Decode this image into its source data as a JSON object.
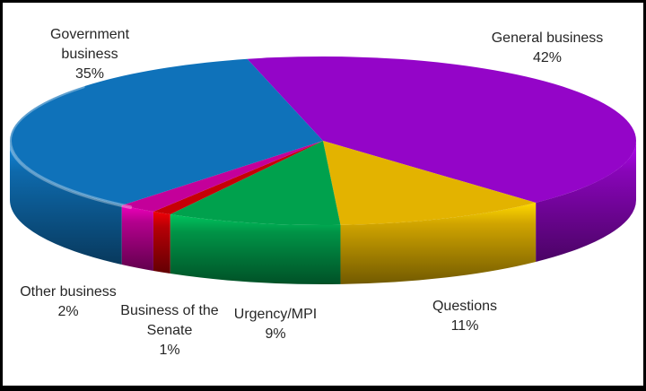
{
  "chart_data": {
    "type": "pie",
    "style": "3d",
    "title": "",
    "legend": "none",
    "labels_position": "outside",
    "label_text_color": "#262626",
    "slices": [
      {
        "id": "general-business",
        "label": "General business",
        "value": 42,
        "pct_text": "42%",
        "color": "#9405C8"
      },
      {
        "id": "questions",
        "label": "Questions",
        "value": 11,
        "pct_text": "11%",
        "color": "#E3B300"
      },
      {
        "id": "urgency-mpi",
        "label": "Urgency/MPI",
        "value": 9,
        "pct_text": "9%",
        "color": "#00A14D"
      },
      {
        "id": "business-of-the-senate",
        "label": "Business of the Senate",
        "value": 1,
        "pct_text": "1%",
        "color": "#C60006"
      },
      {
        "id": "other-business",
        "label": "Other business",
        "value": 2,
        "pct_text": "2%",
        "color": "#C4009A"
      },
      {
        "id": "government-business",
        "label": "Government business",
        "value": 35,
        "pct_text": "35%",
        "color": "#0F72BA"
      }
    ]
  }
}
